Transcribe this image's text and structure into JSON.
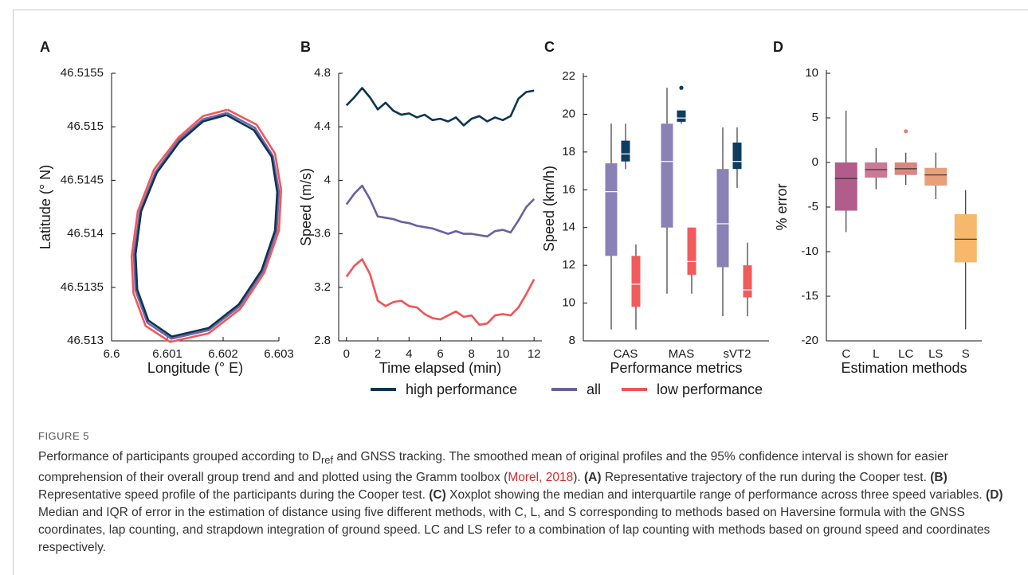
{
  "chart_data": [
    {
      "type": "line",
      "panel": "A",
      "xlabel": "Longitude (° E)",
      "ylabel": "Latitude (° N)",
      "xlim": [
        6.6,
        6.603
      ],
      "ylim": [
        46.513,
        46.5155
      ],
      "xticks": [
        6.6,
        6.601,
        6.602,
        6.603
      ],
      "yticks": [
        46.513,
        46.5135,
        46.514,
        46.5145,
        46.515,
        46.5155
      ],
      "series": [
        {
          "color": "#f0585a",
          "x": [
            6.60208,
            6.6026,
            6.60293,
            6.60304,
            6.603,
            6.60274,
            6.60231,
            6.60174,
            6.60105,
            6.60061,
            6.60039,
            6.60036,
            6.60047,
            6.60076,
            6.6012,
            6.60164,
            6.60208
          ],
          "values": [
            46.51516,
            46.51502,
            46.51475,
            46.51441,
            46.51403,
            46.51364,
            46.5133,
            46.51307,
            46.51299,
            46.51314,
            46.51345,
            46.51379,
            46.51421,
            46.5146,
            46.5149,
            46.5151,
            46.51516
          ]
        },
        {
          "color": "#6f66a8",
          "x": [
            6.60207,
            6.60257,
            6.60289,
            6.603,
            6.60296,
            6.60271,
            6.60229,
            6.60174,
            6.60107,
            6.60064,
            6.60043,
            6.6004,
            6.60051,
            6.60079,
            6.60121,
            6.60164,
            6.60207
          ],
          "values": [
            46.51513,
            46.51499,
            46.51473,
            46.5144,
            46.51403,
            46.51365,
            46.51332,
            46.5131,
            46.51302,
            46.51317,
            46.51347,
            46.5138,
            46.51421,
            46.51458,
            46.51488,
            46.51507,
            46.51513
          ]
        },
        {
          "color": "#0d3552",
          "x": [
            6.60206,
            6.60255,
            6.60287,
            6.60297,
            6.60293,
            6.60269,
            6.60228,
            6.60174,
            6.60108,
            6.60066,
            6.60046,
            6.60043,
            6.60053,
            6.60081,
            6.60122,
            6.60164,
            6.60206
          ],
          "values": [
            46.51511,
            46.51497,
            46.51472,
            46.51439,
            46.51403,
            46.51366,
            46.51334,
            46.51312,
            46.51304,
            46.51319,
            46.51348,
            46.51381,
            46.51421,
            46.51457,
            46.51486,
            46.51505,
            46.51511
          ]
        }
      ]
    },
    {
      "type": "line",
      "panel": "B",
      "xlabel": "Time elapsed (min)",
      "ylabel": "Speed (m/s)",
      "xlim": [
        -0.5,
        12.5
      ],
      "ylim": [
        2.8,
        4.8
      ],
      "xticks": [
        0,
        2,
        4,
        6,
        8,
        10,
        12
      ],
      "yticks": [
        2.8,
        3.2,
        3.6,
        4,
        4.4,
        4.8
      ],
      "x": [
        0,
        0.5,
        1,
        1.5,
        2,
        2.5,
        3,
        3.5,
        4,
        4.5,
        5,
        5.5,
        6,
        6.5,
        7,
        7.5,
        8,
        8.5,
        9,
        9.5,
        10,
        10.5,
        11,
        11.5,
        12
      ],
      "series": [
        {
          "name": "high performance",
          "color": "#0d3552",
          "values": [
            4.56,
            4.62,
            4.69,
            4.62,
            4.53,
            4.58,
            4.52,
            4.49,
            4.5,
            4.47,
            4.49,
            4.45,
            4.46,
            4.44,
            4.47,
            4.41,
            4.46,
            4.48,
            4.44,
            4.47,
            4.45,
            4.48,
            4.61,
            4.66,
            4.67
          ]
        },
        {
          "name": "all",
          "color": "#6a5fa0",
          "values": [
            3.82,
            3.9,
            3.96,
            3.86,
            3.73,
            3.72,
            3.71,
            3.69,
            3.68,
            3.66,
            3.65,
            3.64,
            3.62,
            3.6,
            3.62,
            3.6,
            3.6,
            3.59,
            3.58,
            3.62,
            3.63,
            3.61,
            3.7,
            3.8,
            3.86
          ]
        },
        {
          "name": "low performance",
          "color": "#f05454",
          "values": [
            3.28,
            3.36,
            3.41,
            3.3,
            3.1,
            3.06,
            3.09,
            3.1,
            3.06,
            3.05,
            3.0,
            2.97,
            2.96,
            2.99,
            3.02,
            2.98,
            2.99,
            2.92,
            2.93,
            2.99,
            3.0,
            2.99,
            3.05,
            3.15,
            3.26
          ]
        }
      ]
    },
    {
      "type": "box",
      "panel": "C",
      "xlabel": "Performance metrics",
      "ylabel": "Speed (km/h)",
      "ylim": [
        8,
        22
      ],
      "yticks": [
        8,
        10,
        12,
        14,
        16,
        18,
        20,
        22
      ],
      "median_color": "#ffffff",
      "categories": [
        "CAS",
        "MAS",
        "sVT2"
      ],
      "series": [
        {
          "color": "#8a82b5",
          "min": [
            8.6,
            10.5,
            9.3
          ],
          "q1": [
            12.5,
            14.0,
            11.9
          ],
          "median": [
            15.9,
            17.5,
            14.2
          ],
          "q3": [
            17.4,
            19.5,
            17.1
          ],
          "max": [
            19.5,
            21.4,
            19.3
          ],
          "outliers": [
            [],
            [],
            []
          ]
        },
        {
          "color": "#0f3d5e",
          "min": [
            17.1,
            19.5,
            16.1
          ],
          "q1": [
            17.5,
            19.6,
            17.1
          ],
          "median": [
            17.9,
            19.8,
            17.5
          ],
          "q3": [
            18.6,
            20.2,
            18.5
          ],
          "max": [
            19.5,
            20.2,
            19.3
          ],
          "outliers": [
            [],
            [
              21.4
            ],
            []
          ]
        },
        {
          "color": "#f15b5b",
          "min": [
            8.6,
            10.5,
            9.3
          ],
          "q1": [
            9.8,
            11.5,
            10.3
          ],
          "median": [
            11.0,
            12.2,
            10.7
          ],
          "q3": [
            12.5,
            14.0,
            12.0
          ],
          "max": [
            13.1,
            14.0,
            13.2
          ],
          "outliers": [
            [],
            [],
            []
          ]
        }
      ]
    },
    {
      "type": "box",
      "panel": "D",
      "xlabel": "Estimation methods",
      "ylabel": "% error",
      "ylim": [
        -20,
        10
      ],
      "yticks": [
        -20,
        -15,
        -10,
        -5,
        0,
        5,
        10
      ],
      "median_color": "#333333",
      "categories": [
        "C",
        "L",
        "LC",
        "LS",
        "S"
      ],
      "series": [
        {
          "colors": [
            "#b25c8c",
            "#c97a96",
            "#d9867f",
            "#e8a07a",
            "#f6b86a"
          ],
          "min": [
            -7.8,
            -3.0,
            -2.5,
            -4.1,
            -18.7
          ],
          "q1": [
            -5.4,
            -1.7,
            -1.4,
            -2.6,
            -11.2
          ],
          "median": [
            -1.8,
            -0.8,
            -0.7,
            -1.4,
            -8.6
          ],
          "q3": [
            0,
            0,
            0,
            -0.6,
            -5.8
          ],
          "max": [
            5.8,
            1.6,
            1.1,
            1.1,
            -3.1
          ],
          "outliers": [
            [],
            [],
            [
              3.5
            ],
            [],
            []
          ]
        }
      ]
    }
  ],
  "caption": {
    "label": "FIGURE 5",
    "segments": [
      {
        "text": "Performance of participants grouped according to D",
        "style": "plain"
      },
      {
        "text": "ref",
        "style": "sub"
      },
      {
        "text": " and GNSS tracking. The smoothed mean of original profiles and the 95% confidence interval is shown for easier comprehension of their overall group trend and and plotted using the Gramm toolbox (",
        "style": "plain"
      },
      {
        "text": "Morel, 2018",
        "style": "link"
      },
      {
        "text": "). ",
        "style": "plain"
      },
      {
        "text": "(A)",
        "style": "bold"
      },
      {
        "text": " Representative trajectory of the run during the Cooper test. ",
        "style": "plain"
      },
      {
        "text": "(B)",
        "style": "bold"
      },
      {
        "text": " Representative speed profile of the participants during the Cooper test. ",
        "style": "plain"
      },
      {
        "text": "(C)",
        "style": "bold"
      },
      {
        "text": " Xoxplot showing the median and interquartile range of performance across three speed variables. ",
        "style": "plain"
      },
      {
        "text": "(D)",
        "style": "bold"
      },
      {
        "text": " Median and IQR of error in the estimation of distance using five different methods, with C, L, and S corresponding to methods based on Haversine formula with the GNSS coordinates, lap counting, and strapdown integration of ground speed. LC and LS refer to a combination of lap counting with methods based on ground speed and coordinates respectively.",
        "style": "plain"
      }
    ]
  }
}
